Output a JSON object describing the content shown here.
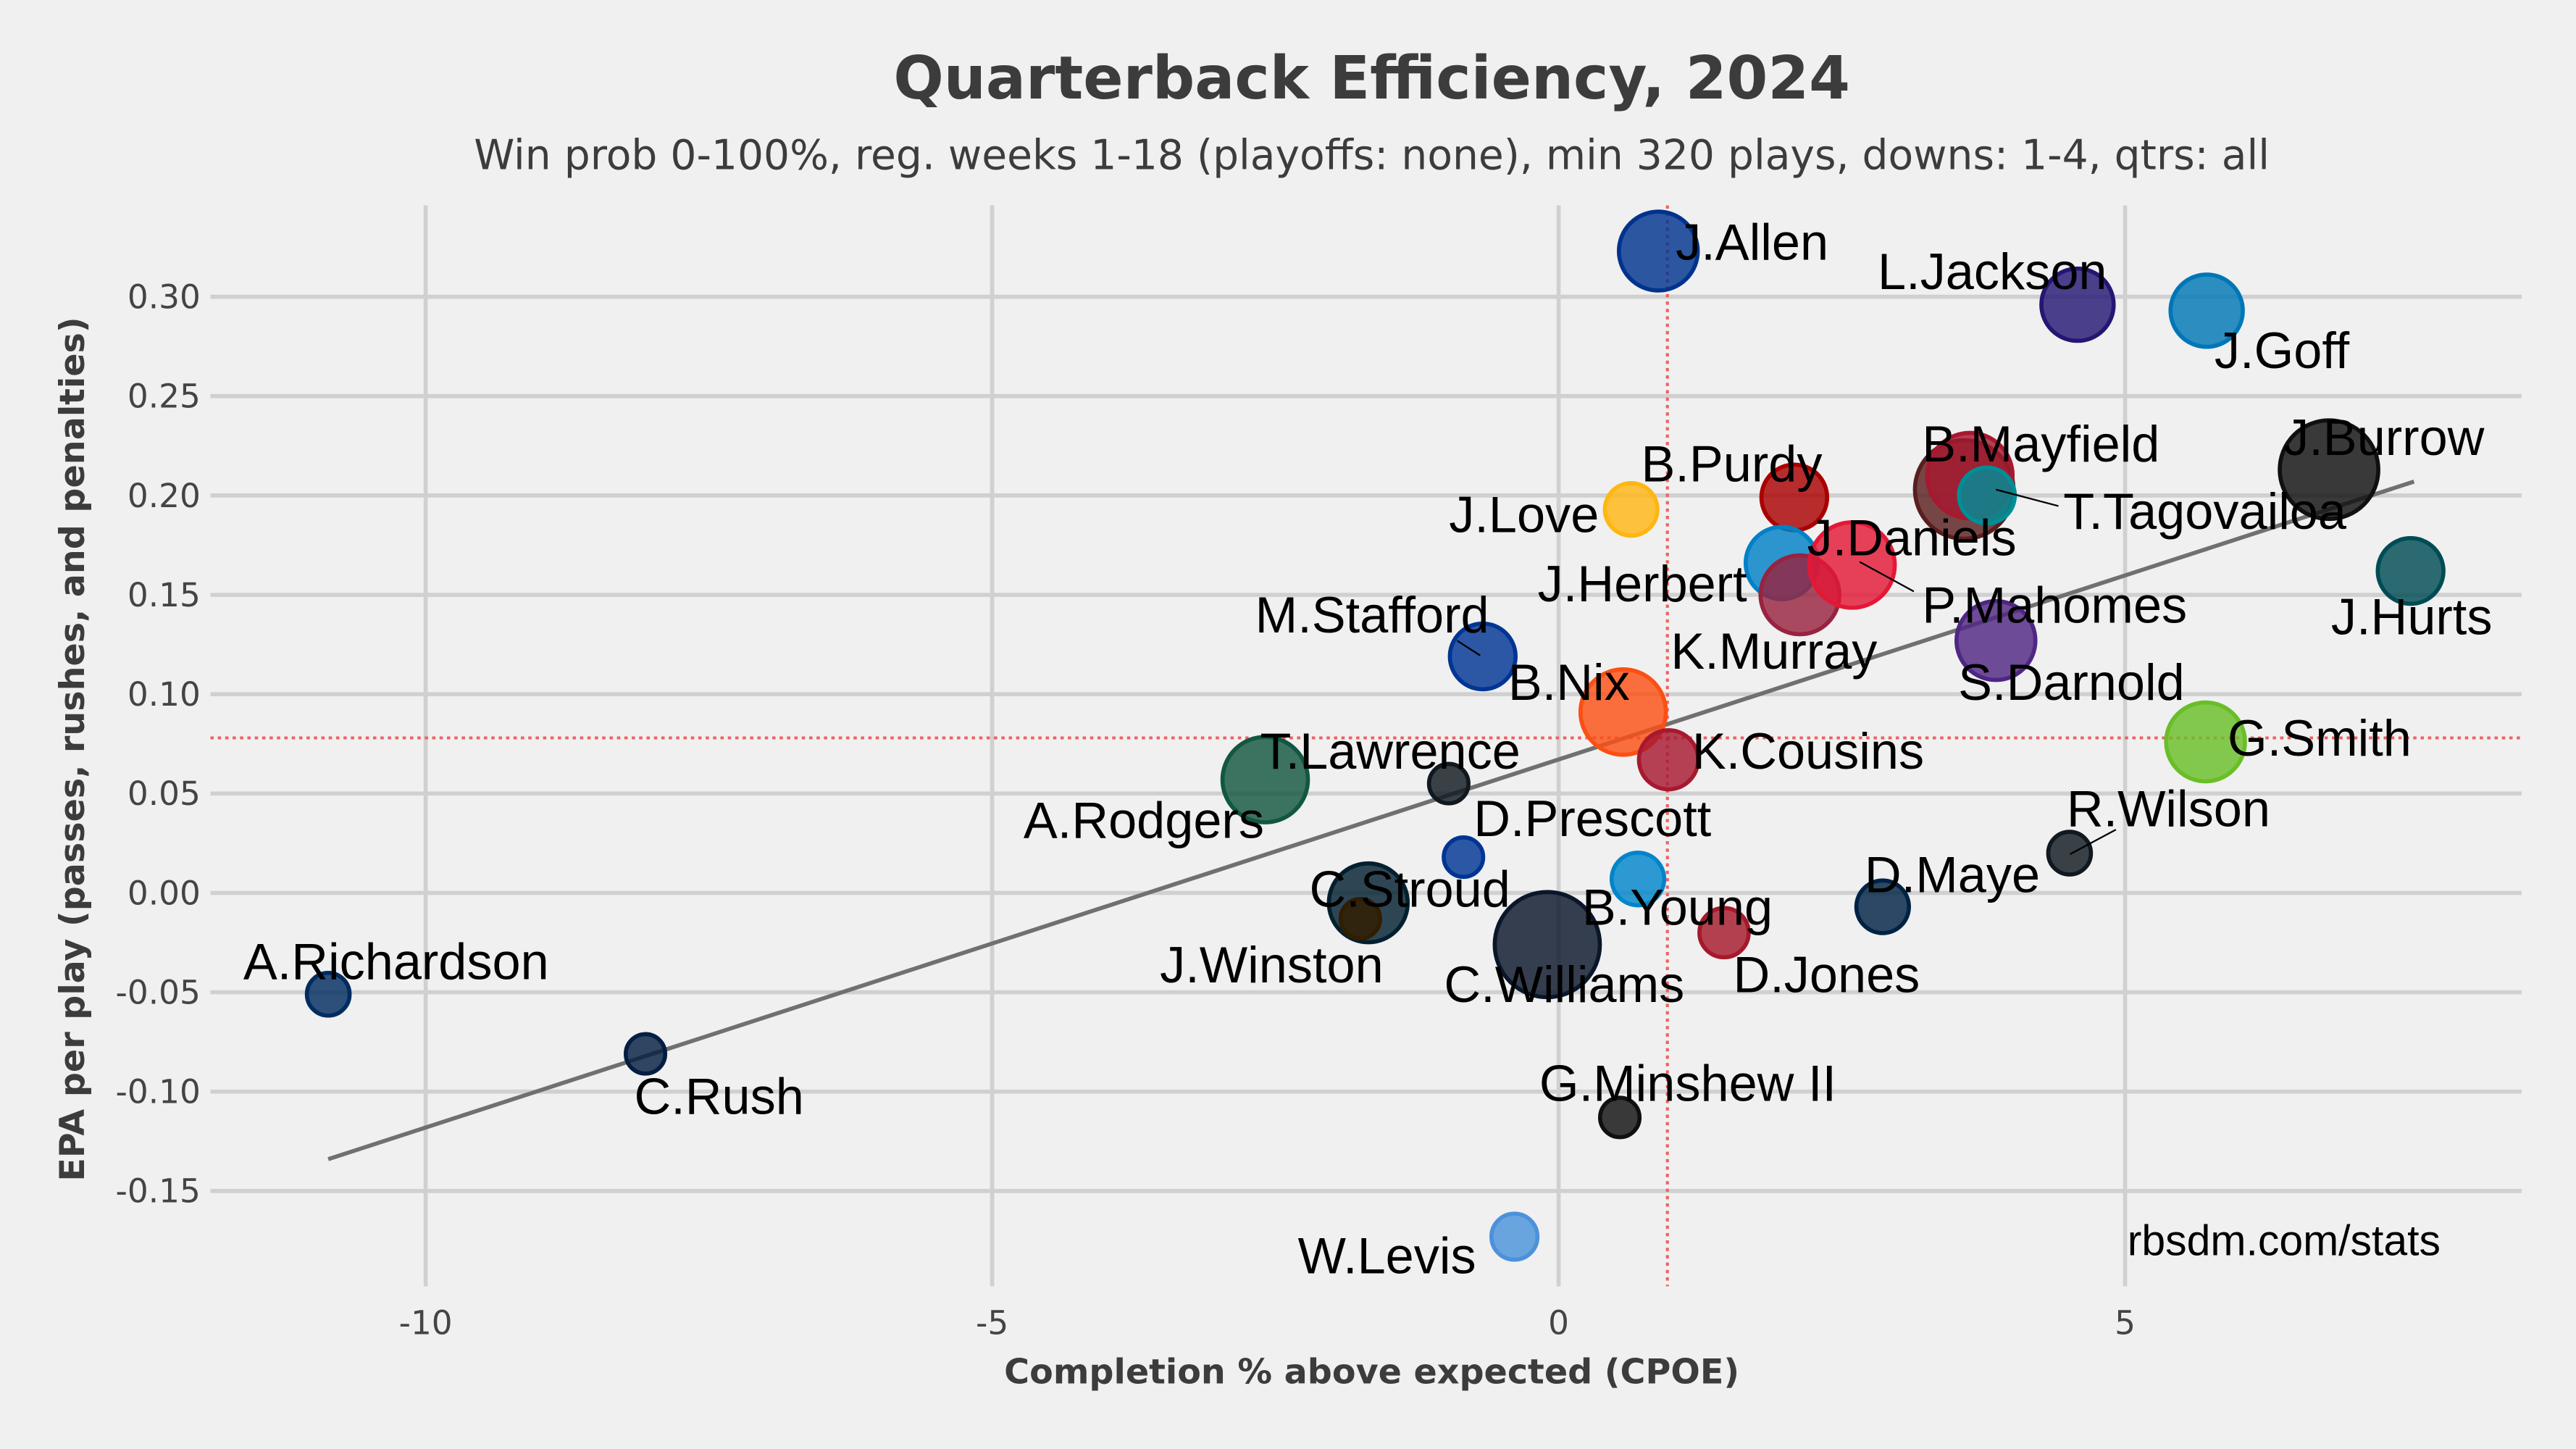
{
  "chart_data": {
    "type": "scatter",
    "title": "Quarterback Efficiency, 2024",
    "subtitle": "Win prob 0-100%, reg. weeks 1-18 (playoffs: none), min 320 plays, downs: 1-4, qtrs: all",
    "xlabel": "Completion % above expected (CPOE)",
    "ylabel": "EPA per play (passes, rushes, and penalties)",
    "credit": "rbsdm.com/stats",
    "xlim": [
      -11.9,
      8.5
    ],
    "ylim": [
      -0.198,
      0.346
    ],
    "xticks": [
      {
        "v": -10,
        "label": "-10"
      },
      {
        "v": -5,
        "label": "-5"
      },
      {
        "v": 0,
        "label": "0"
      },
      {
        "v": 5,
        "label": "5"
      }
    ],
    "yticks": [
      {
        "v": 0.3,
        "label": "0.30"
      },
      {
        "v": 0.25,
        "label": "0.25"
      },
      {
        "v": 0.2,
        "label": "0.20"
      },
      {
        "v": 0.15,
        "label": "0.15"
      },
      {
        "v": 0.1,
        "label": "0.10"
      },
      {
        "v": 0.05,
        "label": "0.05"
      },
      {
        "v": 0.0,
        "label": "0.00"
      },
      {
        "v": -0.05,
        "label": "-0.05"
      },
      {
        "v": -0.1,
        "label": "-0.10"
      },
      {
        "v": -0.15,
        "label": "-0.15"
      }
    ],
    "grid": true,
    "mean_x": 0.96,
    "mean_y": 0.078,
    "trendline": {
      "x": [
        -10.86,
        7.55
      ],
      "y": [
        -0.134,
        0.207
      ]
    },
    "points": [
      {
        "name": "J.Allen",
        "x": 0.88,
        "y": 0.323,
        "size": 24,
        "color": "#00338d"
      },
      {
        "name": "L.Jackson",
        "x": 4.58,
        "y": 0.296,
        "size": 22,
        "color": "#241773"
      },
      {
        "name": "J.Goff",
        "x": 5.72,
        "y": 0.293,
        "size": 22,
        "color": "#0076b6"
      },
      {
        "name": "J.Burrow",
        "x": 6.8,
        "y": 0.213,
        "size": 30,
        "color": "#101010"
      },
      {
        "name": "B.Mayfield",
        "x": 3.58,
        "y": 0.203,
        "size": 30,
        "color": "#5a1e1e"
      },
      {
        "name": "P.Mahomes",
        "x": 3.63,
        "y": 0.21,
        "size": 26,
        "color": "#a71930"
      },
      {
        "name": "T.Tagovailoa",
        "x": 3.78,
        "y": 0.2,
        "size": 17,
        "color": "#008e97"
      },
      {
        "name": "B.Purdy",
        "x": 2.08,
        "y": 0.199,
        "size": 20,
        "color": "#aa0000"
      },
      {
        "name": "J.Love",
        "x": 0.64,
        "y": 0.193,
        "size": 16,
        "color": "#ffb612"
      },
      {
        "name": "J.Herbert",
        "x": 1.97,
        "y": 0.166,
        "size": 22,
        "color": "#0080c6"
      },
      {
        "name": "K.Murray",
        "x": 2.13,
        "y": 0.15,
        "size": 24,
        "color": "#97233f"
      },
      {
        "name": "J.Daniels",
        "x": 2.59,
        "y": 0.165,
        "size": 26,
        "color": "#e31837"
      },
      {
        "name": "J.Hurts",
        "x": 7.52,
        "y": 0.162,
        "size": 20,
        "color": "#004c54"
      },
      {
        "name": "M.Stafford",
        "x": -0.67,
        "y": 0.119,
        "size": 20,
        "color": "#003594"
      },
      {
        "name": "S.Darnold",
        "x": 3.86,
        "y": 0.127,
        "size": 24,
        "color": "#4f2683"
      },
      {
        "name": "B.Nix",
        "x": 0.57,
        "y": 0.091,
        "size": 26,
        "color": "#fb4f14"
      },
      {
        "name": "K.Cousins",
        "x": 0.97,
        "y": 0.067,
        "size": 18,
        "color": "#a71930"
      },
      {
        "name": "G.Smith",
        "x": 5.71,
        "y": 0.076,
        "size": 24,
        "color": "#69be28"
      },
      {
        "name": "T.Lawrence",
        "x": -0.97,
        "y": 0.055,
        "size": 12,
        "color": "#101820"
      },
      {
        "name": "A.Rodgers",
        "x": -2.59,
        "y": 0.057,
        "size": 26,
        "color": "#125740"
      },
      {
        "name": "D.Prescott",
        "x": -0.84,
        "y": 0.018,
        "size": 12,
        "color": "#003594"
      },
      {
        "name": "R.Wilson",
        "x": 4.51,
        "y": 0.02,
        "size": 13,
        "color": "#101820"
      },
      {
        "name": "B.Young",
        "x": 0.7,
        "y": 0.007,
        "size": 16,
        "color": "#0085ca"
      },
      {
        "name": "C.Stroud",
        "x": -1.68,
        "y": -0.005,
        "size": 24,
        "color": "#03202f"
      },
      {
        "name": "D.Maye",
        "x": 2.86,
        "y": -0.007,
        "size": 16,
        "color": "#002244"
      },
      {
        "name": "J.Winston",
        "x": -1.75,
        "y": -0.013,
        "size": 12,
        "color": "#311d00"
      },
      {
        "name": "C.Williams",
        "x": -0.1,
        "y": -0.026,
        "size": 32,
        "color": "#0b162a"
      },
      {
        "name": "D.Jones",
        "x": 1.46,
        "y": -0.02,
        "size": 15,
        "color": "#a5192b"
      },
      {
        "name": "A.Richardson",
        "x": -10.86,
        "y": -0.051,
        "size": 13,
        "color": "#002c5f"
      },
      {
        "name": "C.Rush",
        "x": -8.06,
        "y": -0.081,
        "size": 12,
        "color": "#041e42"
      },
      {
        "name": "G.Minshew II",
        "x": 0.54,
        "y": -0.113,
        "size": 12,
        "color": "#101010"
      },
      {
        "name": "W.Levis",
        "x": -0.39,
        "y": -0.173,
        "size": 14,
        "color": "#4b92db"
      }
    ]
  }
}
